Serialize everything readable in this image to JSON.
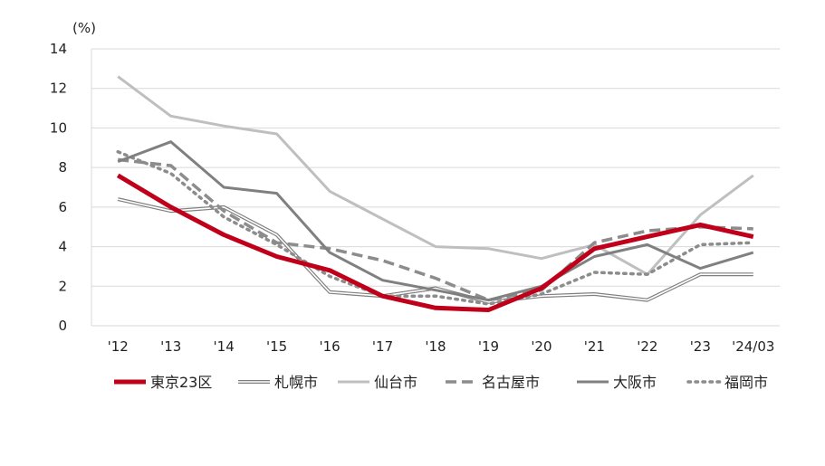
{
  "chart_data": {
    "type": "line",
    "ylabel": "(%)",
    "ylim": [
      0,
      14
    ],
    "yticks": [
      0,
      2,
      4,
      6,
      8,
      10,
      12,
      14
    ],
    "categories": [
      "'12",
      "'13",
      "'14",
      "'15",
      "'16",
      "'17",
      "'18",
      "'19",
      "'20",
      "'21",
      "'22",
      "'23",
      "'24/03"
    ],
    "grid": "horizontal",
    "legend_position": "bottom",
    "series": [
      {
        "name": "東京23区",
        "color": "#c0001a",
        "style": "thick",
        "values": [
          7.6,
          6.0,
          4.6,
          3.5,
          2.8,
          1.5,
          0.9,
          0.8,
          1.9,
          3.9,
          4.5,
          5.1,
          4.5
        ]
      },
      {
        "name": "札幌市",
        "color": "#7f7f7f",
        "style": "double",
        "values": [
          6.4,
          5.8,
          6.0,
          4.6,
          1.7,
          1.5,
          1.9,
          1.2,
          1.5,
          1.6,
          1.3,
          2.6,
          2.6
        ]
      },
      {
        "name": "仙台市",
        "color": "#bfbfbf",
        "style": "solid",
        "values": [
          12.6,
          10.6,
          10.1,
          9.7,
          6.8,
          5.4,
          4.0,
          3.9,
          3.4,
          4.1,
          2.6,
          5.6,
          7.6
        ]
      },
      {
        "name": "名古屋市",
        "color": "#8c8c8c",
        "style": "dashed",
        "values": [
          8.4,
          8.1,
          5.8,
          4.2,
          3.9,
          3.3,
          2.4,
          1.3,
          1.8,
          4.2,
          4.8,
          5.0,
          4.9
        ]
      },
      {
        "name": "大阪市",
        "color": "#808080",
        "style": "solid",
        "values": [
          8.3,
          9.3,
          7.0,
          6.7,
          3.7,
          2.3,
          1.8,
          1.3,
          2.0,
          3.5,
          4.1,
          2.9,
          3.7
        ]
      },
      {
        "name": "福岡市",
        "color": "#8c8c8c",
        "style": "dotted",
        "values": [
          8.8,
          7.7,
          5.5,
          4.1,
          2.5,
          1.5,
          1.5,
          1.1,
          1.6,
          2.7,
          2.6,
          4.1,
          4.2
        ]
      }
    ]
  }
}
